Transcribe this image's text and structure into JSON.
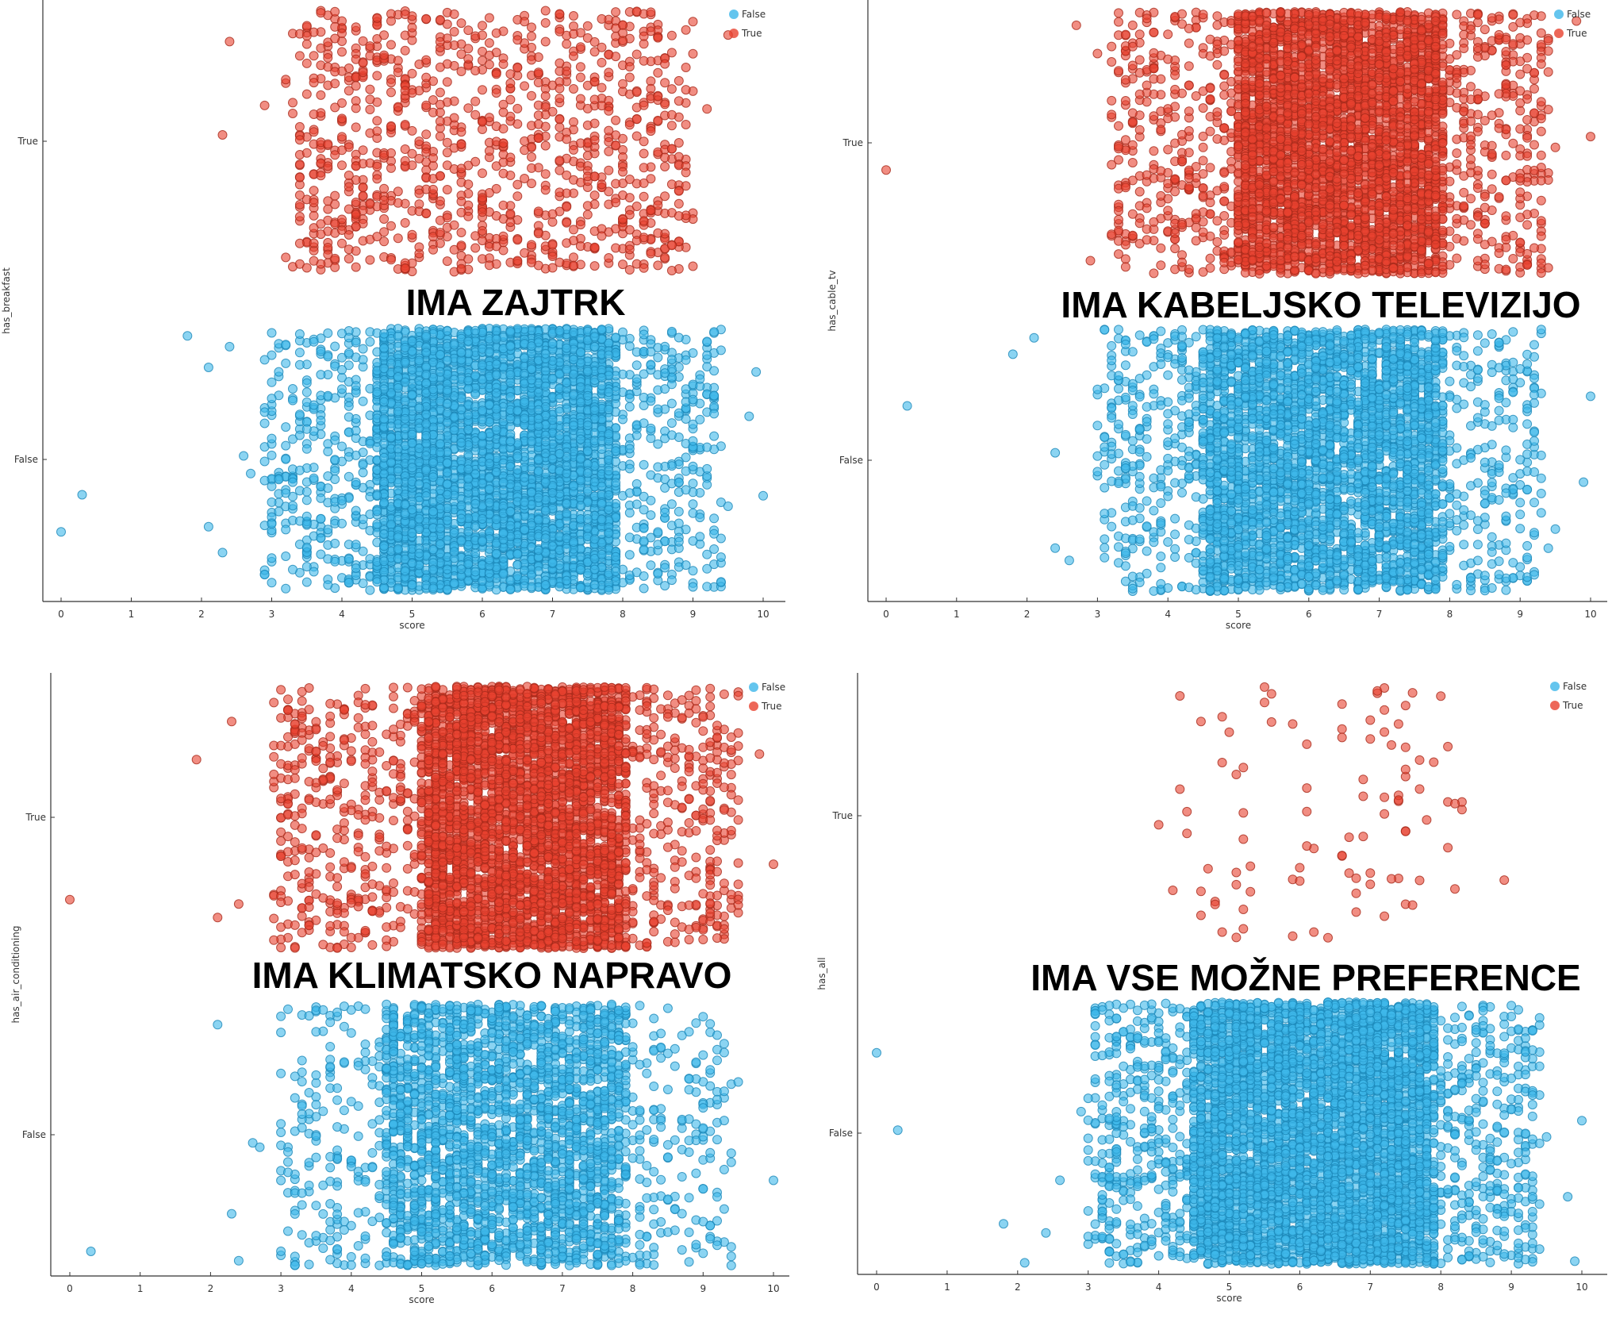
{
  "colors": {
    "false": "#3db7ea",
    "true": "#e8412e",
    "axis": "#333333",
    "background": "#ffffff"
  },
  "legend": {
    "placement": "top-right",
    "entries": [
      "False",
      "True"
    ]
  },
  "chart_data": [
    {
      "type": "scatter",
      "overlay_title": "IMA ZAJTRK",
      "xlabel": "score",
      "ylabel": "has_breakfast",
      "xlim": [
        0,
        10
      ],
      "xticks": [
        "0",
        "1",
        "2",
        "3",
        "4",
        "5",
        "6",
        "7",
        "8",
        "9",
        "10"
      ],
      "yticks": [
        "False",
        "True"
      ],
      "grid": false,
      "series": [
        {
          "name": "False",
          "color": "#3db7ea",
          "outliers": [
            0,
            0.3,
            1.8,
            2.1,
            2.1,
            2.3,
            2.4,
            2.6,
            2.7,
            2.9,
            3.0,
            9.5,
            9.8,
            9.9,
            10.0
          ],
          "dense_range": [
            4.5,
            7.9
          ],
          "spread_range": [
            2.9,
            9.4
          ],
          "n_points": 4600
        },
        {
          "name": "True",
          "color": "#e8412e",
          "outliers": [
            2.3,
            2.4,
            2.9,
            3.2,
            3.2,
            3.2,
            9.2,
            9.5
          ],
          "dense_range": null,
          "spread_range": [
            3.3,
            9.0
          ],
          "n_points": 1000
        }
      ]
    },
    {
      "type": "scatter",
      "overlay_title": "IMA KABELJSKO TELEVIZIJO",
      "xlabel": "score",
      "ylabel": "has_cable_tv",
      "xlim": [
        0,
        10
      ],
      "xticks": [
        "0",
        "1",
        "2",
        "3",
        "4",
        "5",
        "6",
        "7",
        "8",
        "9",
        "10"
      ],
      "yticks": [
        "False",
        "True"
      ],
      "grid": false,
      "series": [
        {
          "name": "False",
          "color": "#3db7ea",
          "outliers": [
            0.3,
            1.8,
            2.1,
            2.4,
            2.4,
            2.6,
            9.4,
            9.5,
            9.9,
            10.0
          ],
          "dense_range": [
            4.5,
            7.9
          ],
          "spread_range": [
            3.0,
            9.3
          ],
          "n_points": 3800
        },
        {
          "name": "True",
          "color": "#e8412e",
          "outliers": [
            0,
            2.7,
            2.9,
            3.0,
            9.5,
            9.8,
            10.0
          ],
          "dense_range": [
            5.0,
            7.9
          ],
          "spread_range": [
            3.2,
            9.4
          ],
          "n_points": 4200
        }
      ]
    },
    {
      "type": "scatter",
      "overlay_title": "IMA KLIMATSKO NAPRAVO",
      "xlabel": "score",
      "ylabel": "has_air_conditioning",
      "xlim": [
        0,
        10
      ],
      "xticks": [
        "0",
        "1",
        "2",
        "3",
        "4",
        "5",
        "6",
        "7",
        "8",
        "9",
        "10"
      ],
      "yticks": [
        "False",
        "True"
      ],
      "grid": false,
      "series": [
        {
          "name": "False",
          "color": "#3db7ea",
          "outliers": [
            0.3,
            2.1,
            2.3,
            2.4,
            2.6,
            2.7,
            3.0,
            9.5,
            10.0
          ],
          "dense_range": [
            4.5,
            7.9
          ],
          "spread_range": [
            3.0,
            9.4
          ],
          "n_points": 2800
        },
        {
          "name": "True",
          "color": "#e8412e",
          "outliers": [
            0,
            1.8,
            2.1,
            2.3,
            2.4,
            9.8,
            10.0
          ],
          "dense_range": [
            5.0,
            7.9
          ],
          "spread_range": [
            2.9,
            9.5
          ],
          "n_points": 4200
        }
      ]
    },
    {
      "type": "scatter",
      "overlay_title": "IMA VSE MOŽNE PREFERENCE",
      "xlabel": "score",
      "ylabel": "has_all",
      "xlim": [
        0,
        10
      ],
      "xticks": [
        "0",
        "1",
        "2",
        "3",
        "4",
        "5",
        "6",
        "7",
        "8",
        "9",
        "10"
      ],
      "yticks": [
        "False",
        "True"
      ],
      "grid": false,
      "series": [
        {
          "name": "False",
          "color": "#3db7ea",
          "outliers": [
            0,
            0.3,
            1.8,
            2.1,
            2.4,
            2.6,
            2.9,
            9.5,
            9.8,
            9.9,
            10.0
          ],
          "dense_range": [
            4.5,
            7.9
          ],
          "spread_range": [
            3.0,
            9.4
          ],
          "n_points": 5200
        },
        {
          "name": "True",
          "color": "#e8412e",
          "outliers": [
            4.0,
            4.2,
            8.9
          ],
          "dense_range": null,
          "spread_range": [
            4.3,
            8.3
          ],
          "n_points": 95
        }
      ]
    }
  ]
}
